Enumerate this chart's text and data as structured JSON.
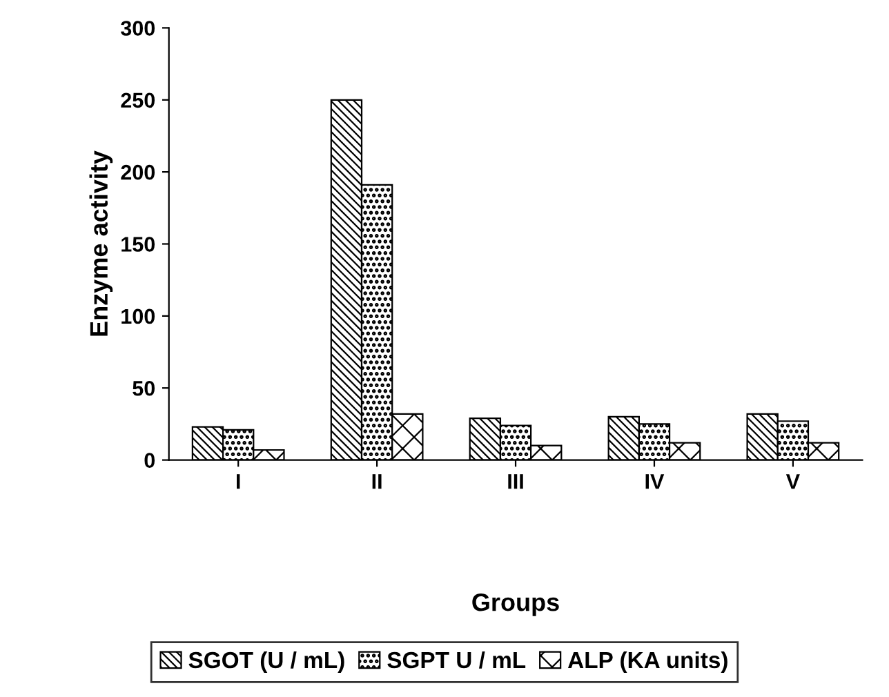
{
  "chart_data": {
    "type": "bar",
    "xlabel": "Groups",
    "ylabel": "Enzyme activity",
    "categories": [
      "I",
      "II",
      "III",
      "IV",
      "V"
    ],
    "series": [
      {
        "name": "SGOT (U / mL)",
        "color": "#000000",
        "values": [
          23,
          250,
          29,
          30,
          32
        ]
      },
      {
        "name": "SGPT U / mL",
        "color": "#000000",
        "values": [
          21,
          191,
          24,
          25,
          27
        ]
      },
      {
        "name": "ALP (KA units)",
        "color": "#000000",
        "values": [
          7,
          32,
          10,
          12,
          12
        ]
      }
    ],
    "ylim": [
      0,
      300
    ],
    "yticks": [
      0,
      50,
      100,
      150,
      200,
      250,
      300
    ],
    "grid": false,
    "legend": "bottom"
  }
}
